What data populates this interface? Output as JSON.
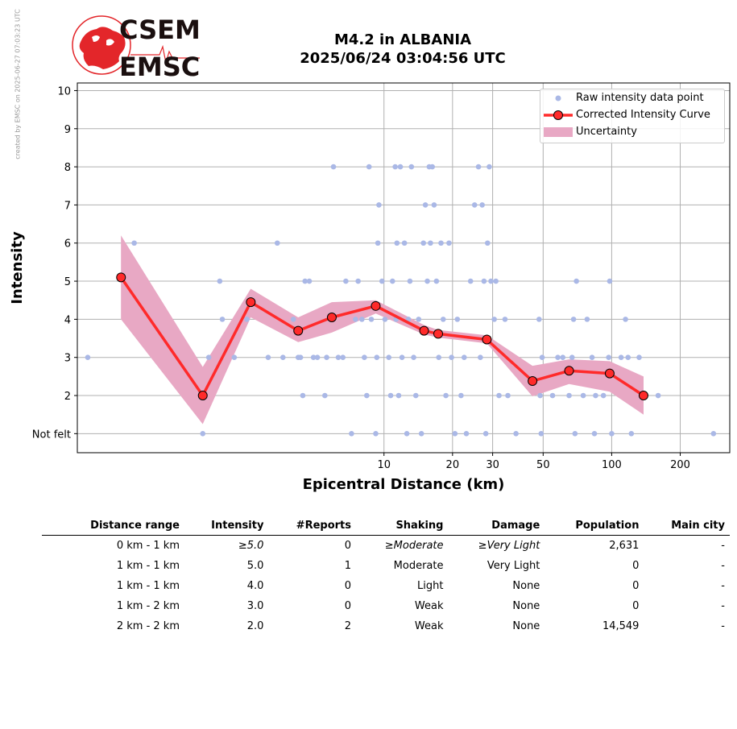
{
  "credit": "created by EMSC on 2025-06-27 07:03:23 UTC",
  "logo": {
    "line1": "CSEM",
    "line2": "EMSC"
  },
  "title": {
    "line1": "M4.2 in ALBANIA",
    "line2": "2025/06/24 03:04:56 UTC"
  },
  "legend": {
    "raw": "Raw intensity data point",
    "curve": "Corrected Intensity Curve",
    "uncertainty": "Uncertainty"
  },
  "colors": {
    "raw_points": "#aab8e6",
    "curve": "#ff2a2a",
    "curve_marker_edge": "#000000",
    "uncertainty": "#e8a8c4",
    "grid": "#b0b0b0",
    "logo_red": "#e3262a"
  },
  "chart_data": {
    "type": "scatter",
    "xscale": "log",
    "xlim": [
      0.45,
      330
    ],
    "ylim": [
      0.5,
      10.2
    ],
    "xlabel": "Epicentral Distance (km)",
    "ylabel": "Intensity",
    "xticks": [
      10,
      20,
      30,
      50,
      100,
      200
    ],
    "xtick_labels": [
      "10",
      "20",
      "30",
      "50",
      "100",
      "200"
    ],
    "yticks": [
      1,
      2,
      3,
      4,
      5,
      6,
      7,
      8,
      9,
      10
    ],
    "ytick_labels": [
      "Not felt",
      "2",
      "3",
      "4",
      "5",
      "6",
      "7",
      "8",
      "9",
      "10"
    ],
    "grid": true,
    "legend_position": "top-right",
    "series": [
      {
        "name": "Corrected Intensity Curve",
        "x": [
          0.7,
          1.6,
          2.6,
          4.2,
          5.9,
          9.2,
          15.0,
          17.3,
          28.3,
          44.9,
          65.0,
          98.0,
          138.0
        ],
        "y": [
          5.1,
          2.0,
          4.45,
          3.7,
          4.05,
          4.35,
          3.7,
          3.62,
          3.47,
          2.38,
          2.65,
          2.58,
          2.0
        ]
      },
      {
        "name": "Uncertainty",
        "x": [
          0.7,
          1.6,
          2.6,
          4.2,
          5.9,
          9.2,
          15.0,
          17.3,
          28.3,
          44.9,
          65.0,
          98.0,
          138.0
        ],
        "lower": [
          4.0,
          1.25,
          4.05,
          3.4,
          3.65,
          4.15,
          3.6,
          3.52,
          3.37,
          1.98,
          2.3,
          2.1,
          1.5
        ],
        "upper": [
          6.2,
          2.75,
          4.8,
          4.05,
          4.45,
          4.5,
          3.85,
          3.72,
          3.58,
          2.78,
          2.95,
          2.9,
          2.5
        ]
      },
      {
        "name": "Raw intensity data point",
        "points": [
          [
            0.5,
            3
          ],
          [
            0.8,
            6
          ],
          [
            1.6,
            1
          ],
          [
            1.7,
            3
          ],
          [
            1.9,
            5
          ],
          [
            1.95,
            4
          ],
          [
            2.2,
            3
          ],
          [
            2.5,
            4
          ],
          [
            3.1,
            3
          ],
          [
            3.4,
            6
          ],
          [
            3.6,
            3
          ],
          [
            4.0,
            4
          ],
          [
            4.2,
            3
          ],
          [
            4.3,
            3
          ],
          [
            4.4,
            2
          ],
          [
            4.5,
            5
          ],
          [
            4.7,
            5
          ],
          [
            4.9,
            3
          ],
          [
            5.1,
            3
          ],
          [
            5.5,
            2
          ],
          [
            5.6,
            3
          ],
          [
            6.0,
            8
          ],
          [
            6.3,
            3
          ],
          [
            6.6,
            3
          ],
          [
            6.8,
            5
          ],
          [
            7.2,
            1
          ],
          [
            7.5,
            4
          ],
          [
            7.7,
            5
          ],
          [
            8.0,
            4
          ],
          [
            8.2,
            3
          ],
          [
            8.4,
            2
          ],
          [
            8.6,
            8
          ],
          [
            8.8,
            4
          ],
          [
            9.3,
            3
          ],
          [
            9.2,
            1
          ],
          [
            9.4,
            6
          ],
          [
            9.5,
            7
          ],
          [
            9.8,
            5
          ],
          [
            10.1,
            4
          ],
          [
            10.5,
            3
          ],
          [
            10.7,
            2
          ],
          [
            10.9,
            5
          ],
          [
            11.2,
            8
          ],
          [
            11.3,
            4
          ],
          [
            11.4,
            6
          ],
          [
            11.6,
            2
          ],
          [
            11.8,
            8
          ],
          [
            12.0,
            3
          ],
          [
            12.3,
            6
          ],
          [
            12.6,
            1
          ],
          [
            12.8,
            4
          ],
          [
            13.0,
            5
          ],
          [
            13.2,
            8
          ],
          [
            13.5,
            3
          ],
          [
            13.8,
            2
          ],
          [
            14.2,
            4
          ],
          [
            14.6,
            1
          ],
          [
            14.9,
            6
          ],
          [
            15.2,
            7
          ],
          [
            15.5,
            5
          ],
          [
            15.8,
            8
          ],
          [
            16.0,
            6
          ],
          [
            16.3,
            8
          ],
          [
            16.6,
            7
          ],
          [
            17.0,
            5
          ],
          [
            17.4,
            3
          ],
          [
            17.8,
            6
          ],
          [
            18.2,
            4
          ],
          [
            18.7,
            2
          ],
          [
            19.3,
            6
          ],
          [
            19.8,
            3
          ],
          [
            20.5,
            1
          ],
          [
            21.0,
            4
          ],
          [
            21.8,
            2
          ],
          [
            22.5,
            3
          ],
          [
            23.0,
            1
          ],
          [
            24.0,
            5
          ],
          [
            25.0,
            7
          ],
          [
            26.0,
            8
          ],
          [
            26.5,
            3
          ],
          [
            27.0,
            7
          ],
          [
            27.5,
            5
          ],
          [
            28.0,
            1
          ],
          [
            28.5,
            6
          ],
          [
            29.0,
            8
          ],
          [
            29.5,
            5
          ],
          [
            30.5,
            4
          ],
          [
            31.0,
            5
          ],
          [
            32.0,
            2
          ],
          [
            34.0,
            4
          ],
          [
            35.0,
            2
          ],
          [
            38.0,
            1
          ],
          [
            48.0,
            4
          ],
          [
            48.5,
            2
          ],
          [
            49.0,
            1
          ],
          [
            49.5,
            3
          ],
          [
            55.0,
            2
          ],
          [
            58.0,
            3
          ],
          [
            61.0,
            3
          ],
          [
            65.0,
            2
          ],
          [
            67.0,
            3
          ],
          [
            68.0,
            4
          ],
          [
            69.0,
            1
          ],
          [
            70.0,
            5
          ],
          [
            75.0,
            2
          ],
          [
            78.0,
            4
          ],
          [
            82.0,
            3
          ],
          [
            84.0,
            1
          ],
          [
            85.0,
            2
          ],
          [
            92.0,
            2
          ],
          [
            97.0,
            3
          ],
          [
            98.0,
            5
          ],
          [
            100.0,
            1
          ],
          [
            110.0,
            3
          ],
          [
            115.0,
            4
          ],
          [
            118.0,
            3
          ],
          [
            122.0,
            1
          ],
          [
            132.0,
            3
          ],
          [
            160.0,
            2
          ],
          [
            280.0,
            1
          ]
        ]
      }
    ]
  },
  "table": {
    "headers": [
      "Distance range",
      "Intensity",
      "#Reports",
      "Shaking",
      "Damage",
      "Population",
      "Main city"
    ],
    "rows": [
      [
        "0 km -    1 km",
        "≥5.0",
        "0",
        "≥Moderate",
        "≥Very Light",
        "2,631",
        "-"
      ],
      [
        "1 km -    1 km",
        "5.0",
        "1",
        "Moderate",
        "Very Light",
        "0",
        "-"
      ],
      [
        "1 km -    1 km",
        "4.0",
        "0",
        "Light",
        "None",
        "0",
        "-"
      ],
      [
        "1 km -    2 km",
        "3.0",
        "0",
        "Weak",
        "None",
        "0",
        "-"
      ],
      [
        "2 km -    2 km",
        "2.0",
        "2",
        "Weak",
        "None",
        "14,549",
        "-"
      ]
    ]
  }
}
